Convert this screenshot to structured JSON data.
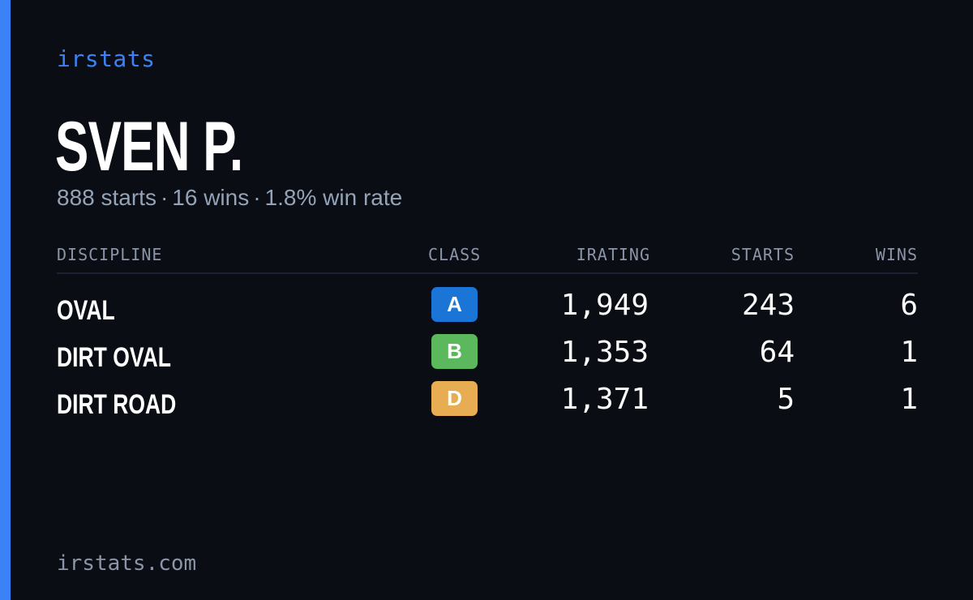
{
  "brand": "irstats",
  "driver": {
    "name": "SVEN P.",
    "summary": {
      "starts": "888 starts",
      "wins": "16 wins",
      "win_rate": "1.8% win rate",
      "separator": "·"
    }
  },
  "table": {
    "headers": {
      "discipline": "DISCIPLINE",
      "class": "CLASS",
      "irating": "IRATING",
      "starts": "STARTS",
      "wins": "WINS"
    },
    "rows": [
      {
        "discipline": "OVAL",
        "class": "A",
        "irating": "1,949",
        "starts": "243",
        "wins": "6"
      },
      {
        "discipline": "DIRT OVAL",
        "class": "B",
        "irating": "1,353",
        "starts": "64",
        "wins": "1"
      },
      {
        "discipline": "DIRT ROAD",
        "class": "D",
        "irating": "1,371",
        "starts": "5",
        "wins": "1"
      }
    ]
  },
  "footer": "irstats.com",
  "colors": {
    "background": "#0a0d14",
    "accent": "#3b82f6",
    "class_a": "#1a75d6",
    "class_b": "#5cb85c",
    "class_d": "#e8ad52"
  }
}
